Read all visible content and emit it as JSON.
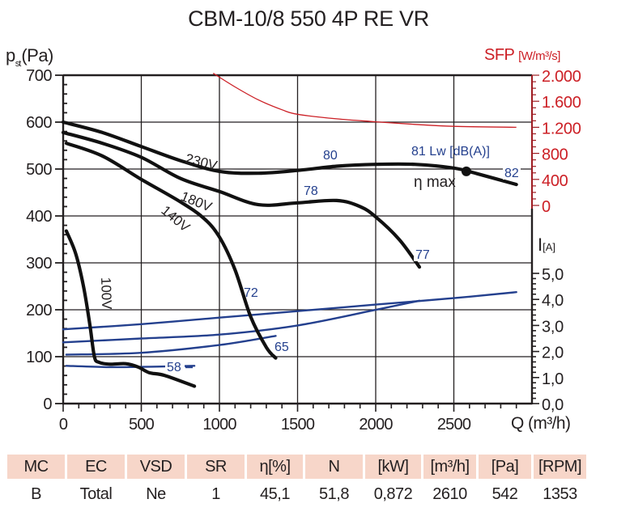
{
  "header": {
    "title": "CBM-10/8 550 4P RE VR"
  },
  "axes": {
    "left_label_main": "p",
    "left_label_sub": "st",
    "left_label_unit": "(Pa)",
    "sfp_label": "SFP",
    "sfp_unit": "[W/m³/s]",
    "current_label": "I",
    "current_unit": "[A]",
    "x_unit": "Q (m³/h)"
  },
  "chart_data": {
    "type": "line",
    "title": "CBM-10/8 550 4P RE VR",
    "xlabel": "Q (m³/h)",
    "ylabel": "pst (Pa)",
    "y2label": "SFP [W/m³/s]",
    "y3label": "I [A]",
    "xlim": [
      0,
      3000
    ],
    "ylim": [
      0,
      700
    ],
    "sfp_lim": [
      0,
      2000
    ],
    "current_lim": [
      0,
      5.0
    ],
    "grid": true,
    "x_ticks": [
      0,
      500,
      1000,
      1500,
      2000,
      2500
    ],
    "y_ticks": [
      0,
      100,
      200,
      300,
      400,
      500,
      600,
      700
    ],
    "sfp_ticks": [
      "0",
      "400",
      "800",
      "1.200",
      "1.600",
      "2.000"
    ],
    "sfp_tick_values": [
      0,
      400,
      800,
      1200,
      1600,
      2000
    ],
    "current_ticks": [
      "0,0",
      "1,0",
      "2,0",
      "3,0",
      "4,0",
      "5,0"
    ],
    "current_tick_values": [
      0,
      1,
      2,
      3,
      4,
      5
    ],
    "pressure_series": [
      {
        "name": "230V",
        "axis": "pressure",
        "color": "#111111",
        "x": [
          0,
          250,
          500,
          750,
          1000,
          1250,
          1500,
          1750,
          2000,
          2250,
          2500,
          2650,
          2900
        ],
        "y": [
          600,
          578,
          548,
          518,
          495,
          491,
          497,
          506,
          510,
          510,
          502,
          490,
          467
        ]
      },
      {
        "name": "180V",
        "axis": "pressure",
        "color": "#111111",
        "x": [
          0,
          250,
          500,
          750,
          1000,
          1250,
          1500,
          1750,
          1900,
          2000,
          2150,
          2280
        ],
        "y": [
          578,
          555,
          525,
          480,
          452,
          424,
          428,
          433,
          420,
          398,
          350,
          291
        ]
      },
      {
        "name": "140V",
        "axis": "pressure",
        "color": "#111111",
        "x": [
          20,
          250,
          500,
          750,
          900,
          1000,
          1100,
          1200,
          1300,
          1360
        ],
        "y": [
          555,
          528,
          478,
          430,
          395,
          355,
          285,
          185,
          120,
          97
        ]
      },
      {
        "name": "100V",
        "axis": "pressure",
        "color": "#111111",
        "x": [
          20,
          80,
          130,
          170,
          200,
          230,
          300,
          400,
          480,
          550,
          650,
          840
        ],
        "y": [
          368,
          320,
          250,
          170,
          100,
          88,
          84,
          85,
          78,
          66,
          60,
          37
        ]
      }
    ],
    "current_series": [
      {
        "name": "I 230V",
        "axis": "current",
        "color": "#24408e",
        "x": [
          0,
          500,
          1000,
          1500,
          2000,
          2500,
          2900
        ],
        "y": [
          2.85,
          3.05,
          3.3,
          3.55,
          3.8,
          4.05,
          4.28
        ]
      },
      {
        "name": "I 180V",
        "axis": "current",
        "color": "#24408e",
        "x": [
          0,
          500,
          1000,
          1500,
          2000,
          2280
        ],
        "y": [
          2.35,
          2.5,
          2.65,
          3.0,
          3.6,
          3.95
        ]
      },
      {
        "name": "I 140V",
        "axis": "current",
        "color": "#24408e",
        "x": [
          20,
          500,
          1000,
          1360
        ],
        "y": [
          1.88,
          1.95,
          2.25,
          2.6
        ]
      },
      {
        "name": "I 100V",
        "axis": "current",
        "color": "#24408e",
        "x": [
          20,
          300,
          600,
          840
        ],
        "y": [
          1.45,
          1.4,
          1.42,
          1.45
        ]
      }
    ],
    "sfp_series": [
      {
        "name": "SFP",
        "axis": "sfp",
        "color": "#cc1f25",
        "x": [
          960,
          1100,
          1250,
          1400,
          1500,
          1750,
          2000,
          2250,
          2500,
          2900
        ],
        "y": [
          2030,
          1820,
          1620,
          1470,
          1400,
          1330,
          1285,
          1245,
          1215,
          1200
        ]
      }
    ],
    "annotations": [
      {
        "text": "230V",
        "type": "curve-label"
      },
      {
        "text": "180V",
        "type": "curve-label"
      },
      {
        "text": "140V",
        "type": "curve-label"
      },
      {
        "text": "100V",
        "type": "curve-label"
      },
      {
        "text": "80",
        "type": "sound-level"
      },
      {
        "text": "81  Lw [dB(A)]",
        "type": "sound-level"
      },
      {
        "text": "82",
        "type": "sound-level"
      },
      {
        "text": "78",
        "type": "sound-level"
      },
      {
        "text": "77",
        "type": "sound-level"
      },
      {
        "text": "72",
        "type": "sound-level"
      },
      {
        "text": "65",
        "type": "sound-level"
      },
      {
        "text": "58",
        "type": "sound-level"
      },
      {
        "text": "η max",
        "type": "marker-label"
      }
    ],
    "eta_max_point": {
      "x": 2580,
      "y": 495,
      "label": "η max"
    }
  },
  "table": {
    "headers": [
      "MC",
      "EC",
      "VSD",
      "SR",
      "η[%]",
      "N",
      "[kW]",
      "[m³/h]",
      "[Pa]",
      "[RPM]"
    ],
    "values": [
      "B",
      "Total",
      "Ne",
      "1",
      "45,1",
      "51,8",
      "0,872",
      "2610",
      "542",
      "1353"
    ]
  },
  "colors": {
    "sfp": "#cc1f25",
    "current": "#24408e",
    "curve": "#111111",
    "table_header_bg": "#f7d6c9"
  }
}
